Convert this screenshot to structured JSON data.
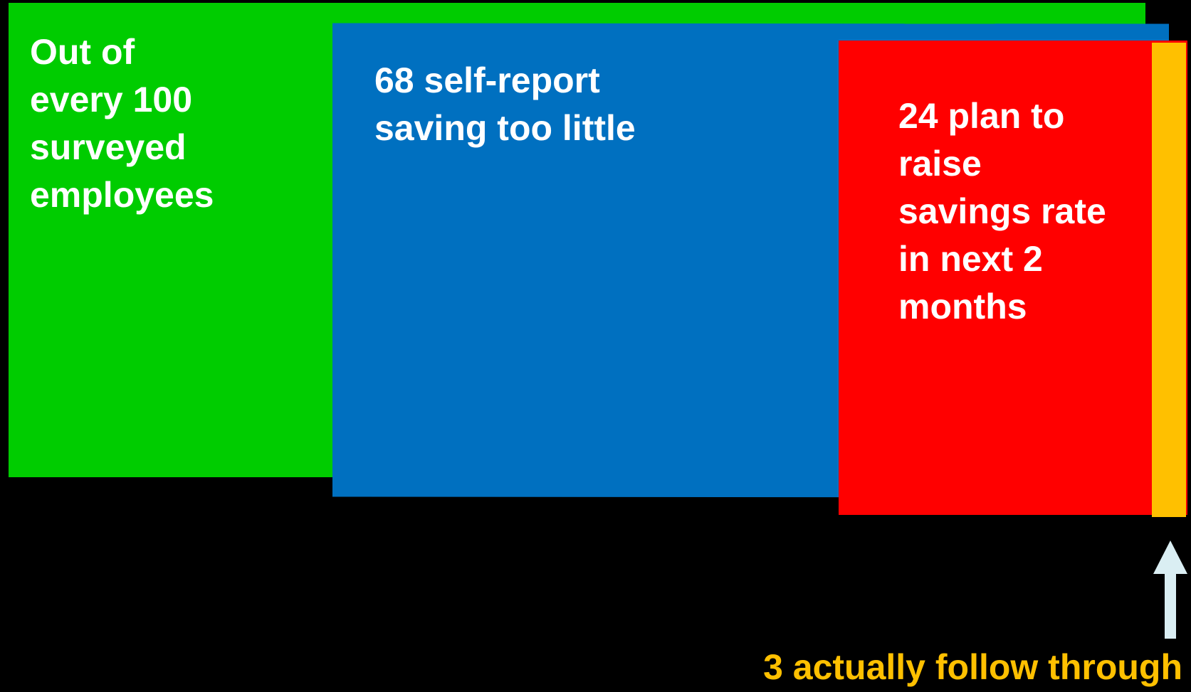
{
  "colors": {
    "background": "#000000",
    "total": "#00cc00",
    "self_report": "#0070c0",
    "plan": "#ff0000",
    "follow_through": "#ffc000",
    "arrow": "#daeef3",
    "label_text": "#ffffff"
  },
  "stages": [
    {
      "name": "total",
      "value": 100,
      "label": "Out of\nevery 100\nsurveyed\nemployees"
    },
    {
      "name": "self_report",
      "value": 68,
      "label": "68 self-report\nsaving too little"
    },
    {
      "name": "plan",
      "value": 24,
      "label": "24 plan to\nraise\nsavings rate\nin next 2\nmonths"
    },
    {
      "name": "follow_through",
      "value": 3,
      "label": "3 actually follow through"
    }
  ],
  "icons": {
    "pointer": "up-arrow-icon"
  }
}
